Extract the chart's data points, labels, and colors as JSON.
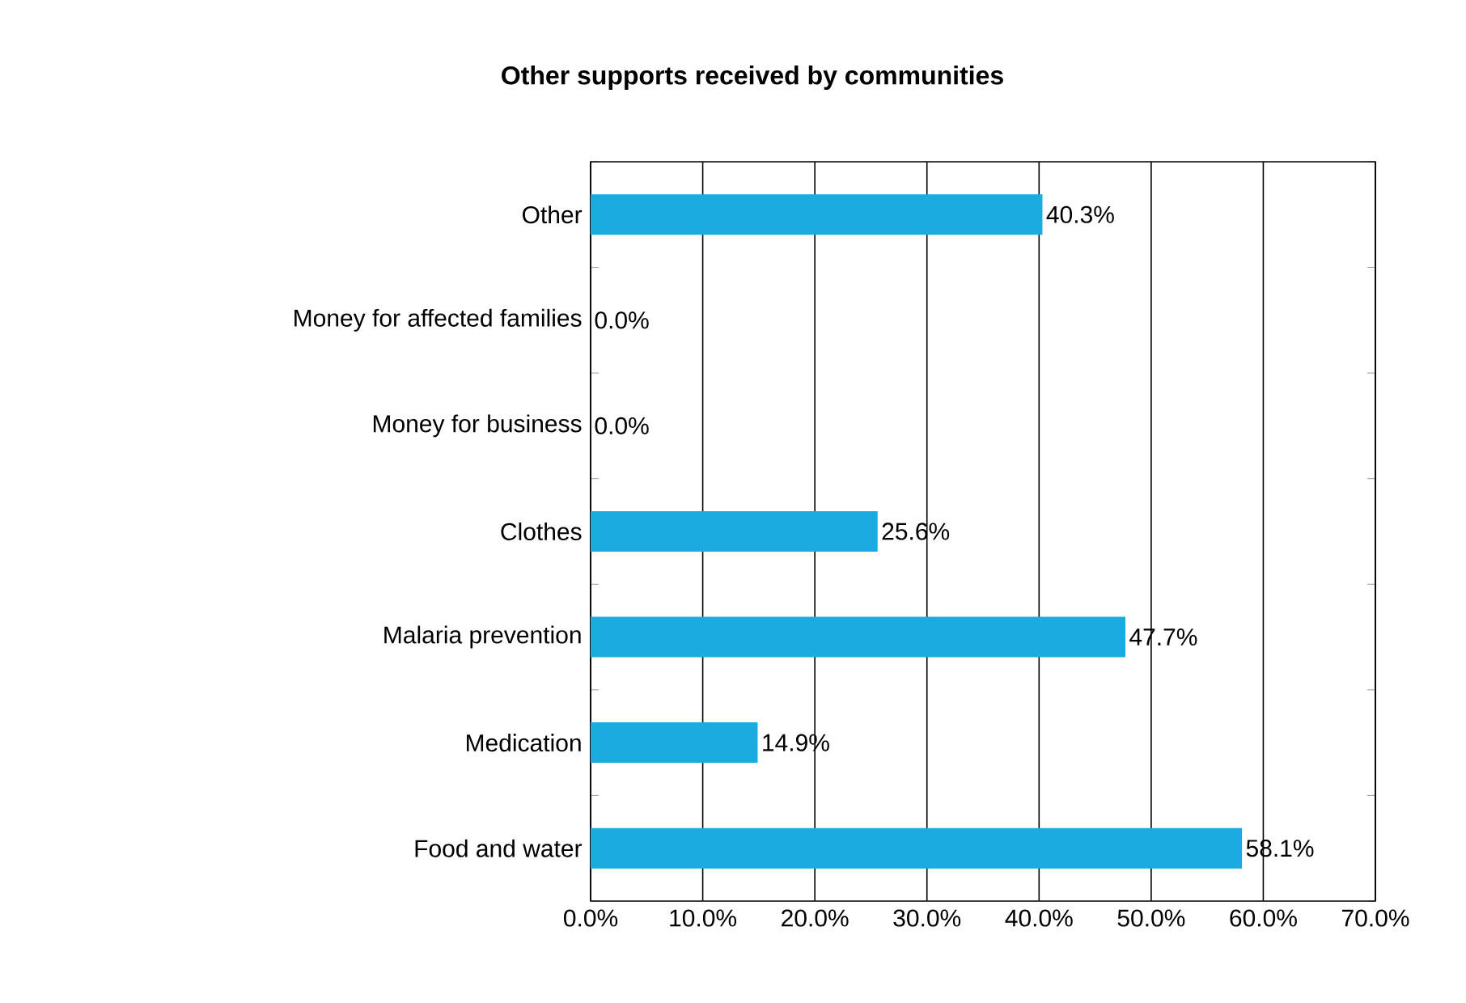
{
  "chart_data": {
    "type": "bar",
    "orientation": "horizontal",
    "title": "Other supports received by communities",
    "categories": [
      "Other",
      "Money for affected families",
      "Money for business",
      "Clothes",
      "Malaria prevention",
      "Medication",
      "Food and water"
    ],
    "values": [
      40.3,
      0.0,
      0.0,
      25.6,
      47.7,
      14.9,
      58.1
    ],
    "value_labels": [
      "40.3%",
      "0.0%",
      "0.0%",
      "25.6%",
      "47.7%",
      "14.9%",
      "58.1%"
    ],
    "color": "#1aabe0",
    "xlim": [
      0,
      70
    ],
    "xticks": [
      {
        "value": 0,
        "label": "0.0%"
      },
      {
        "value": 10,
        "label": "10.0%"
      },
      {
        "value": 20,
        "label": "20.0%"
      },
      {
        "value": 30,
        "label": "30.0%"
      },
      {
        "value": 40,
        "label": "40.0%"
      },
      {
        "value": 50,
        "label": "50.0%"
      },
      {
        "value": 60,
        "label": "60.0%"
      },
      {
        "value": 70,
        "label": "70.0%"
      }
    ],
    "grid": "x"
  }
}
